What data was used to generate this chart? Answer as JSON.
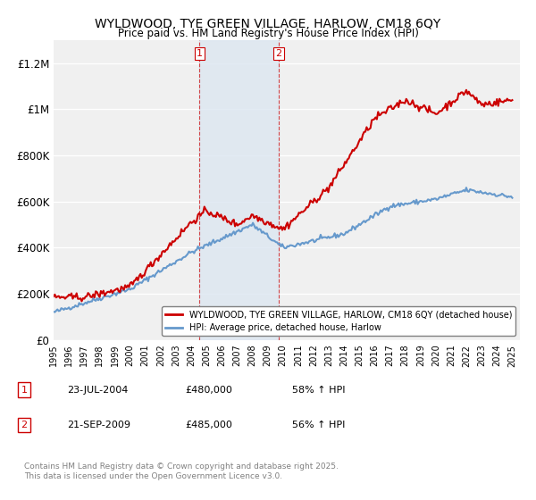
{
  "title": "WYLDWOOD, TYE GREEN VILLAGE, HARLOW, CM18 6QY",
  "subtitle": "Price paid vs. HM Land Registry's House Price Index (HPI)",
  "xlabel": "",
  "ylabel": "",
  "ylim": [
    0,
    1300000
  ],
  "yticks": [
    0,
    200000,
    400000,
    600000,
    800000,
    1000000,
    1200000
  ],
  "ytick_labels": [
    "£0",
    "£200K",
    "£400K",
    "£600K",
    "£800K",
    "£1M",
    "£1.2M"
  ],
  "background_color": "#ffffff",
  "plot_bg_color": "#f0f0f0",
  "grid_color": "#ffffff",
  "line1_color": "#cc0000",
  "line2_color": "#6699cc",
  "shading_color": "#dce6f1",
  "marker1_year": 2004.55,
  "marker2_year": 2009.72,
  "marker1_label": "1",
  "marker2_label": "2",
  "legend1_label": "WYLDWOOD, TYE GREEN VILLAGE, HARLOW, CM18 6QY (detached house)",
  "legend2_label": "HPI: Average price, detached house, Harlow",
  "annotation1": [
    "1",
    "23-JUL-2004",
    "£480,000",
    "58% ↑ HPI"
  ],
  "annotation2": [
    "2",
    "21-SEP-2009",
    "£485,000",
    "56% ↑ HPI"
  ],
  "footer": "Contains HM Land Registry data © Crown copyright and database right 2025.\nThis data is licensed under the Open Government Licence v3.0.",
  "xmin": 1995,
  "xmax": 2025.5
}
